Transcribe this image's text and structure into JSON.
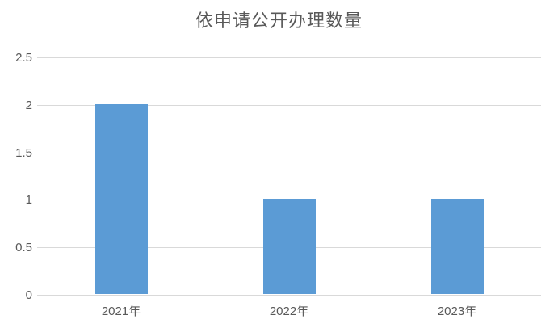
{
  "title": "依申请公开办理数量",
  "colors": {
    "bar": "#5b9bd5",
    "gridline": "#d9d9d9",
    "axis_text": "#595959",
    "title_text": "#595959",
    "background": "#ffffff"
  },
  "chart_data": {
    "type": "bar",
    "title": "依申请公开办理数量",
    "categories": [
      "2021年",
      "2022年",
      "2023年"
    ],
    "values": [
      2,
      1,
      1
    ],
    "series": [
      {
        "name": "依申请公开办理数量",
        "values": [
          2,
          1,
          1
        ]
      }
    ],
    "xlabel": "",
    "ylabel": "",
    "ylim": [
      0,
      2.5
    ],
    "y_ticks": [
      "0",
      "0.5",
      "1",
      "1.5",
      "2",
      "2.5"
    ],
    "y_tick_values": [
      0,
      0.5,
      1,
      1.5,
      2,
      2.5
    ],
    "grid": true,
    "legend_position": "none",
    "bar_color": "#5b9bd5"
  }
}
